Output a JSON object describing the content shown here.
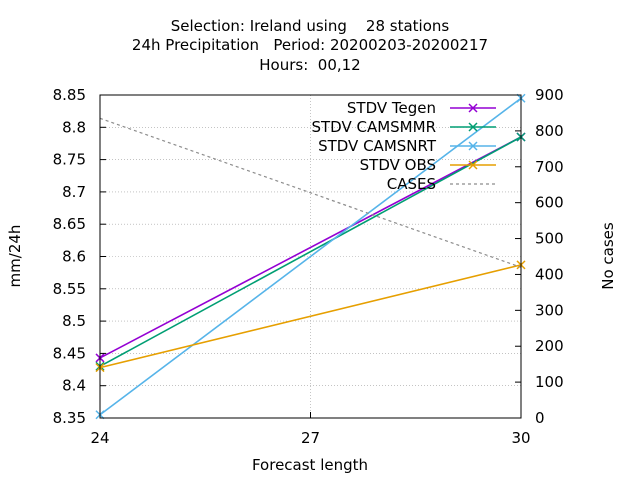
{
  "chart_data": {
    "type": "line",
    "title_lines": [
      "Selection: Ireland using    28 stations",
      "24h Precipitation   Period: 20200203-20200217",
      "Hours:  00,12"
    ],
    "xlabel": "Forecast length",
    "ylabel": "mm/24h",
    "y2label": "No cases",
    "x": [
      24,
      30
    ],
    "xticks": [
      "24",
      "27",
      "30"
    ],
    "xlim": [
      24,
      30
    ],
    "ylim": [
      8.35,
      8.85
    ],
    "yticks": [
      "8.35",
      "8.4",
      "8.45",
      "8.5",
      "8.55",
      "8.6",
      "8.65",
      "8.7",
      "8.75",
      "8.8",
      "8.85"
    ],
    "y2lim": [
      0,
      900
    ],
    "y2ticks": [
      "0",
      "100",
      "200",
      "300",
      "400",
      "500",
      "600",
      "700",
      "800",
      "900"
    ],
    "grid": true,
    "legend_position": "top-right",
    "series": [
      {
        "name": "STDV Tegen",
        "axis": "y",
        "color": "#9400d3",
        "style": "solid",
        "marker": "x",
        "values": [
          8.443,
          8.785
        ]
      },
      {
        "name": "STDV CAMSMMR",
        "axis": "y",
        "color": "#009e73",
        "style": "solid",
        "marker": "x",
        "values": [
          8.43,
          8.785
        ]
      },
      {
        "name": "STDV CAMSNRT",
        "axis": "y",
        "color": "#56b4e9",
        "style": "solid",
        "marker": "x",
        "values": [
          8.355,
          8.845
        ]
      },
      {
        "name": "STDV OBS",
        "axis": "y",
        "color": "#e69f00",
        "style": "solid",
        "marker": "x",
        "values": [
          8.428,
          8.587
        ]
      },
      {
        "name": "CASES",
        "axis": "y2",
        "color": "#8c8c8c",
        "style": "dashed",
        "marker": "none",
        "values": [
          835,
          420
        ]
      }
    ]
  }
}
